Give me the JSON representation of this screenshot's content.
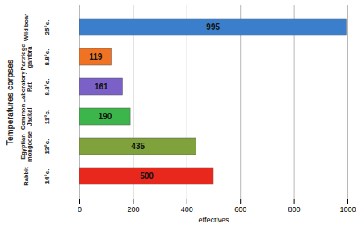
{
  "chart_data": {
    "type": "bar",
    "orientation": "horizontal",
    "categories": [
      "Wild boar",
      "Partridge gambra",
      "Laboratory Rat",
      "Common Jackal",
      "Egyptian mongoose",
      "Rabbit"
    ],
    "temperatures": [
      "25°c.",
      "8.8°c.",
      "8.8°c.",
      "11°c.",
      "13°c.",
      "14°c."
    ],
    "values": [
      995,
      119,
      161,
      190,
      435,
      500
    ],
    "colors": [
      "#3b7fcc",
      "#f07323",
      "#7b60c8",
      "#3cb54b",
      "#7fa23c",
      "#e8271d"
    ],
    "xlabel": "effectives",
    "ylabel": "Temperatures corpses",
    "xlim": [
      0,
      1000
    ],
    "xticks": [
      0,
      200,
      400,
      600,
      800,
      1000
    ],
    "grid": true,
    "data_labels": true
  }
}
